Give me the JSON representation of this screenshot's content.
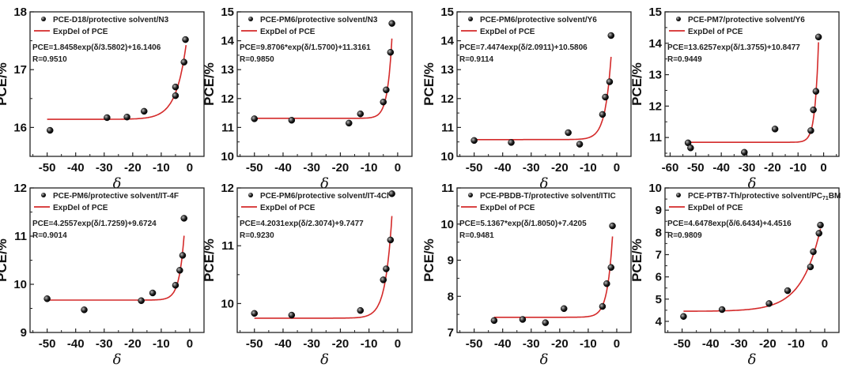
{
  "colors": {
    "fit": "#d42a2a",
    "point": "#111111",
    "axis": "#222222"
  },
  "chart_data": [
    {
      "type": "scatter",
      "title": "",
      "xlabel": "δ",
      "ylabel": "PCE/%",
      "xlim": [
        -56,
        5
      ],
      "ylim": [
        15.5,
        18
      ],
      "xticks": [
        -50,
        -40,
        -30,
        -20,
        -10,
        0
      ],
      "yticks": [
        16,
        17,
        18
      ],
      "legend": {
        "series": "PCE-D18/protective solvent/N3",
        "fit": "ExpDel of PCE",
        "equation": "PCE=1.8458exp(δ/3.5802)+16.1406",
        "r": "R=0.9510"
      },
      "fit": {
        "A": 1.8458,
        "t": 3.5802,
        "c": 16.1406,
        "x_range": [
          -50,
          -1.3
        ]
      },
      "points": [
        [
          -49,
          15.95
        ],
        [
          -29,
          16.17
        ],
        [
          -22,
          16.18
        ],
        [
          -16,
          16.28
        ],
        [
          -5,
          16.55
        ],
        [
          -5,
          16.7
        ],
        [
          -2,
          17.13
        ],
        [
          -1.5,
          17.52
        ]
      ]
    },
    {
      "type": "scatter",
      "title": "",
      "xlabel": "δ",
      "ylabel": "PCE/%",
      "xlim": [
        -56,
        5
      ],
      "ylim": [
        10,
        15
      ],
      "xticks": [
        -50,
        -40,
        -30,
        -20,
        -10,
        0
      ],
      "yticks": [
        10,
        11,
        12,
        13,
        14,
        15
      ],
      "legend": {
        "series": "PCE-PM6/protective solvent/N3",
        "fit": "ExpDel of PCE",
        "equation": "PCE=9.8706*exp(δ/1.5700)+11.3161",
        "r": "R=0.9850"
      },
      "fit": {
        "A": 9.8706,
        "t": 1.57,
        "c": 11.3161,
        "x_range": [
          -50,
          -2
        ]
      },
      "points": [
        [
          -50,
          11.3
        ],
        [
          -37,
          11.25
        ],
        [
          -17,
          11.15
        ],
        [
          -13,
          11.47
        ],
        [
          -5,
          11.88
        ],
        [
          -4,
          12.3
        ],
        [
          -2.5,
          13.6
        ],
        [
          -2,
          14.6
        ]
      ]
    },
    {
      "type": "scatter",
      "title": "",
      "xlabel": "δ",
      "ylabel": "PCE/%",
      "xlim": [
        -56,
        5
      ],
      "ylim": [
        10,
        15
      ],
      "xticks": [
        -50,
        -40,
        -30,
        -20,
        -10,
        0
      ],
      "yticks": [
        10,
        11,
        12,
        13,
        14,
        15
      ],
      "legend": {
        "series": "PCE-PM6/protective solvent/Y6",
        "fit": "ExpDel of PCE",
        "equation": "PCE=7.4474exp(δ/2.0911)+10.5806",
        "r": "R=0.9114"
      },
      "fit": {
        "A": 7.4474,
        "t": 2.0911,
        "c": 10.5806,
        "x_range": [
          -50,
          -2
        ]
      },
      "points": [
        [
          -50,
          10.55
        ],
        [
          -37,
          10.48
        ],
        [
          -17,
          10.82
        ],
        [
          -13,
          10.42
        ],
        [
          -5,
          11.45
        ],
        [
          -4,
          12.05
        ],
        [
          -2.5,
          12.58
        ],
        [
          -2,
          14.18
        ]
      ]
    },
    {
      "type": "scatter",
      "title": "",
      "xlabel": "δ",
      "ylabel": "PCE/%",
      "xlim": [
        -62,
        6
      ],
      "ylim": [
        10.4,
        15
      ],
      "xticks": [
        -60,
        -50,
        -40,
        -30,
        -20,
        -10,
        0
      ],
      "yticks": [
        11,
        12,
        13,
        14,
        15
      ],
      "legend": {
        "series": "PCE-PM7/protective solvent/Y6",
        "fit": "ExpDel of PCE",
        "equation": "PCE=13.6257exp(δ/1.3755)+10.8477",
        "r": "R=0.9449"
      },
      "fit": {
        "A": 13.6257,
        "t": 1.3755,
        "c": 10.8477,
        "x_range": [
          -53,
          -2
        ]
      },
      "points": [
        [
          -53,
          10.83
        ],
        [
          -52,
          10.67
        ],
        [
          -31,
          10.53
        ],
        [
          -19,
          11.27
        ],
        [
          -5,
          11.22
        ],
        [
          -4,
          11.88
        ],
        [
          -3,
          12.47
        ],
        [
          -2,
          14.2
        ]
      ]
    },
    {
      "type": "scatter",
      "title": "",
      "xlabel": "δ",
      "ylabel": "PCE/%",
      "xlim": [
        -56,
        5
      ],
      "ylim": [
        9,
        12
      ],
      "xticks": [
        -50,
        -40,
        -30,
        -20,
        -10,
        0
      ],
      "yticks": [
        9,
        10,
        11,
        12
      ],
      "legend": {
        "series": "PCE-PM6/protective solvent/IT-4F",
        "fit": "ExpDel of PCE",
        "equation": "PCE=4.2557exp(δ/1.7259)+9.6724",
        "r": "R=0.9014"
      },
      "fit": {
        "A": 4.2557,
        "t": 1.7259,
        "c": 9.6724,
        "x_range": [
          -50,
          -2
        ]
      },
      "points": [
        [
          -50,
          9.7
        ],
        [
          -37,
          9.47
        ],
        [
          -17,
          9.66
        ],
        [
          -13,
          9.82
        ],
        [
          -5,
          9.98
        ],
        [
          -3.5,
          10.29
        ],
        [
          -2.5,
          10.6
        ],
        [
          -2,
          11.37
        ]
      ]
    },
    {
      "type": "scatter",
      "title": "",
      "xlabel": "δ",
      "ylabel": "PCE/%",
      "xlim": [
        -56,
        5
      ],
      "ylim": [
        9.5,
        12
      ],
      "xticks": [
        -50,
        -40,
        -30,
        -20,
        -10,
        0
      ],
      "yticks": [
        10,
        11,
        12
      ],
      "legend": {
        "series": "PCE-PM6/protective solvent/IT-4Cl",
        "fit": "ExpDel of PCE",
        "equation": "PCE=4.2031exp(δ/2.3074)+9.7477",
        "r": "R=0.9230"
      },
      "fit": {
        "A": 4.2031,
        "t": 2.3074,
        "c": 9.7477,
        "x_range": [
          -50,
          -2
        ]
      },
      "points": [
        [
          -50,
          9.83
        ],
        [
          -37,
          9.8
        ],
        [
          -13,
          9.88
        ],
        [
          -5,
          10.41
        ],
        [
          -4,
          10.6
        ],
        [
          -2.5,
          11.1
        ],
        [
          -2,
          11.9
        ]
      ]
    },
    {
      "type": "scatter",
      "title": "",
      "xlabel": "δ",
      "ylabel": "PCE/%",
      "xlim": [
        -56,
        5
      ],
      "ylim": [
        7,
        11
      ],
      "xticks": [
        -50,
        -40,
        -30,
        -20,
        -10,
        0
      ],
      "yticks": [
        7,
        8,
        9,
        10,
        11
      ],
      "legend": {
        "series": "PCE-PBDB-T/protective solvent/ITIC",
        "fit": "ExpDel of PCE",
        "equation": "PCE=5.1367*exp(δ/1.8050)+7.4205",
        "r": "R=0.9481"
      },
      "fit": {
        "A": 5.1367,
        "t": 1.805,
        "c": 7.4205,
        "x_range": [
          -43,
          -1.5
        ]
      },
      "points": [
        [
          -43,
          7.33
        ],
        [
          -33,
          7.36
        ],
        [
          -25,
          7.27
        ],
        [
          -18.5,
          7.66
        ],
        [
          -5,
          7.72
        ],
        [
          -3.5,
          8.35
        ],
        [
          -2,
          8.8
        ],
        [
          -1.5,
          9.95
        ]
      ]
    },
    {
      "type": "scatter",
      "title": "",
      "xlabel": "δ",
      "ylabel": "PCE/%",
      "xlim": [
        -56,
        5
      ],
      "ylim": [
        3.5,
        10
      ],
      "xticks": [
        -50,
        -40,
        -30,
        -20,
        -10,
        0
      ],
      "yticks": [
        4,
        5,
        6,
        7,
        8,
        9,
        10
      ],
      "legend": {
        "series": "PCE-PTB7-Th/protective solvent/PC",
        "series_sub": "71",
        "series_tail": "BM",
        "fit": "ExpDel of PCE",
        "equation": "PCE=4.6478exp(δ/6.6434)+4.4516",
        "r": "R=0.9809"
      },
      "fit": {
        "A": 4.6478,
        "t": 6.6434,
        "c": 4.4516,
        "x_range": [
          -49.5,
          -1.5
        ]
      },
      "points": [
        [
          -49.5,
          4.22
        ],
        [
          -36,
          4.53
        ],
        [
          -19.5,
          4.8
        ],
        [
          -13,
          5.38
        ],
        [
          -5,
          6.45
        ],
        [
          -4,
          7.13
        ],
        [
          -2,
          7.96
        ],
        [
          -1.5,
          8.33
        ]
      ]
    }
  ]
}
